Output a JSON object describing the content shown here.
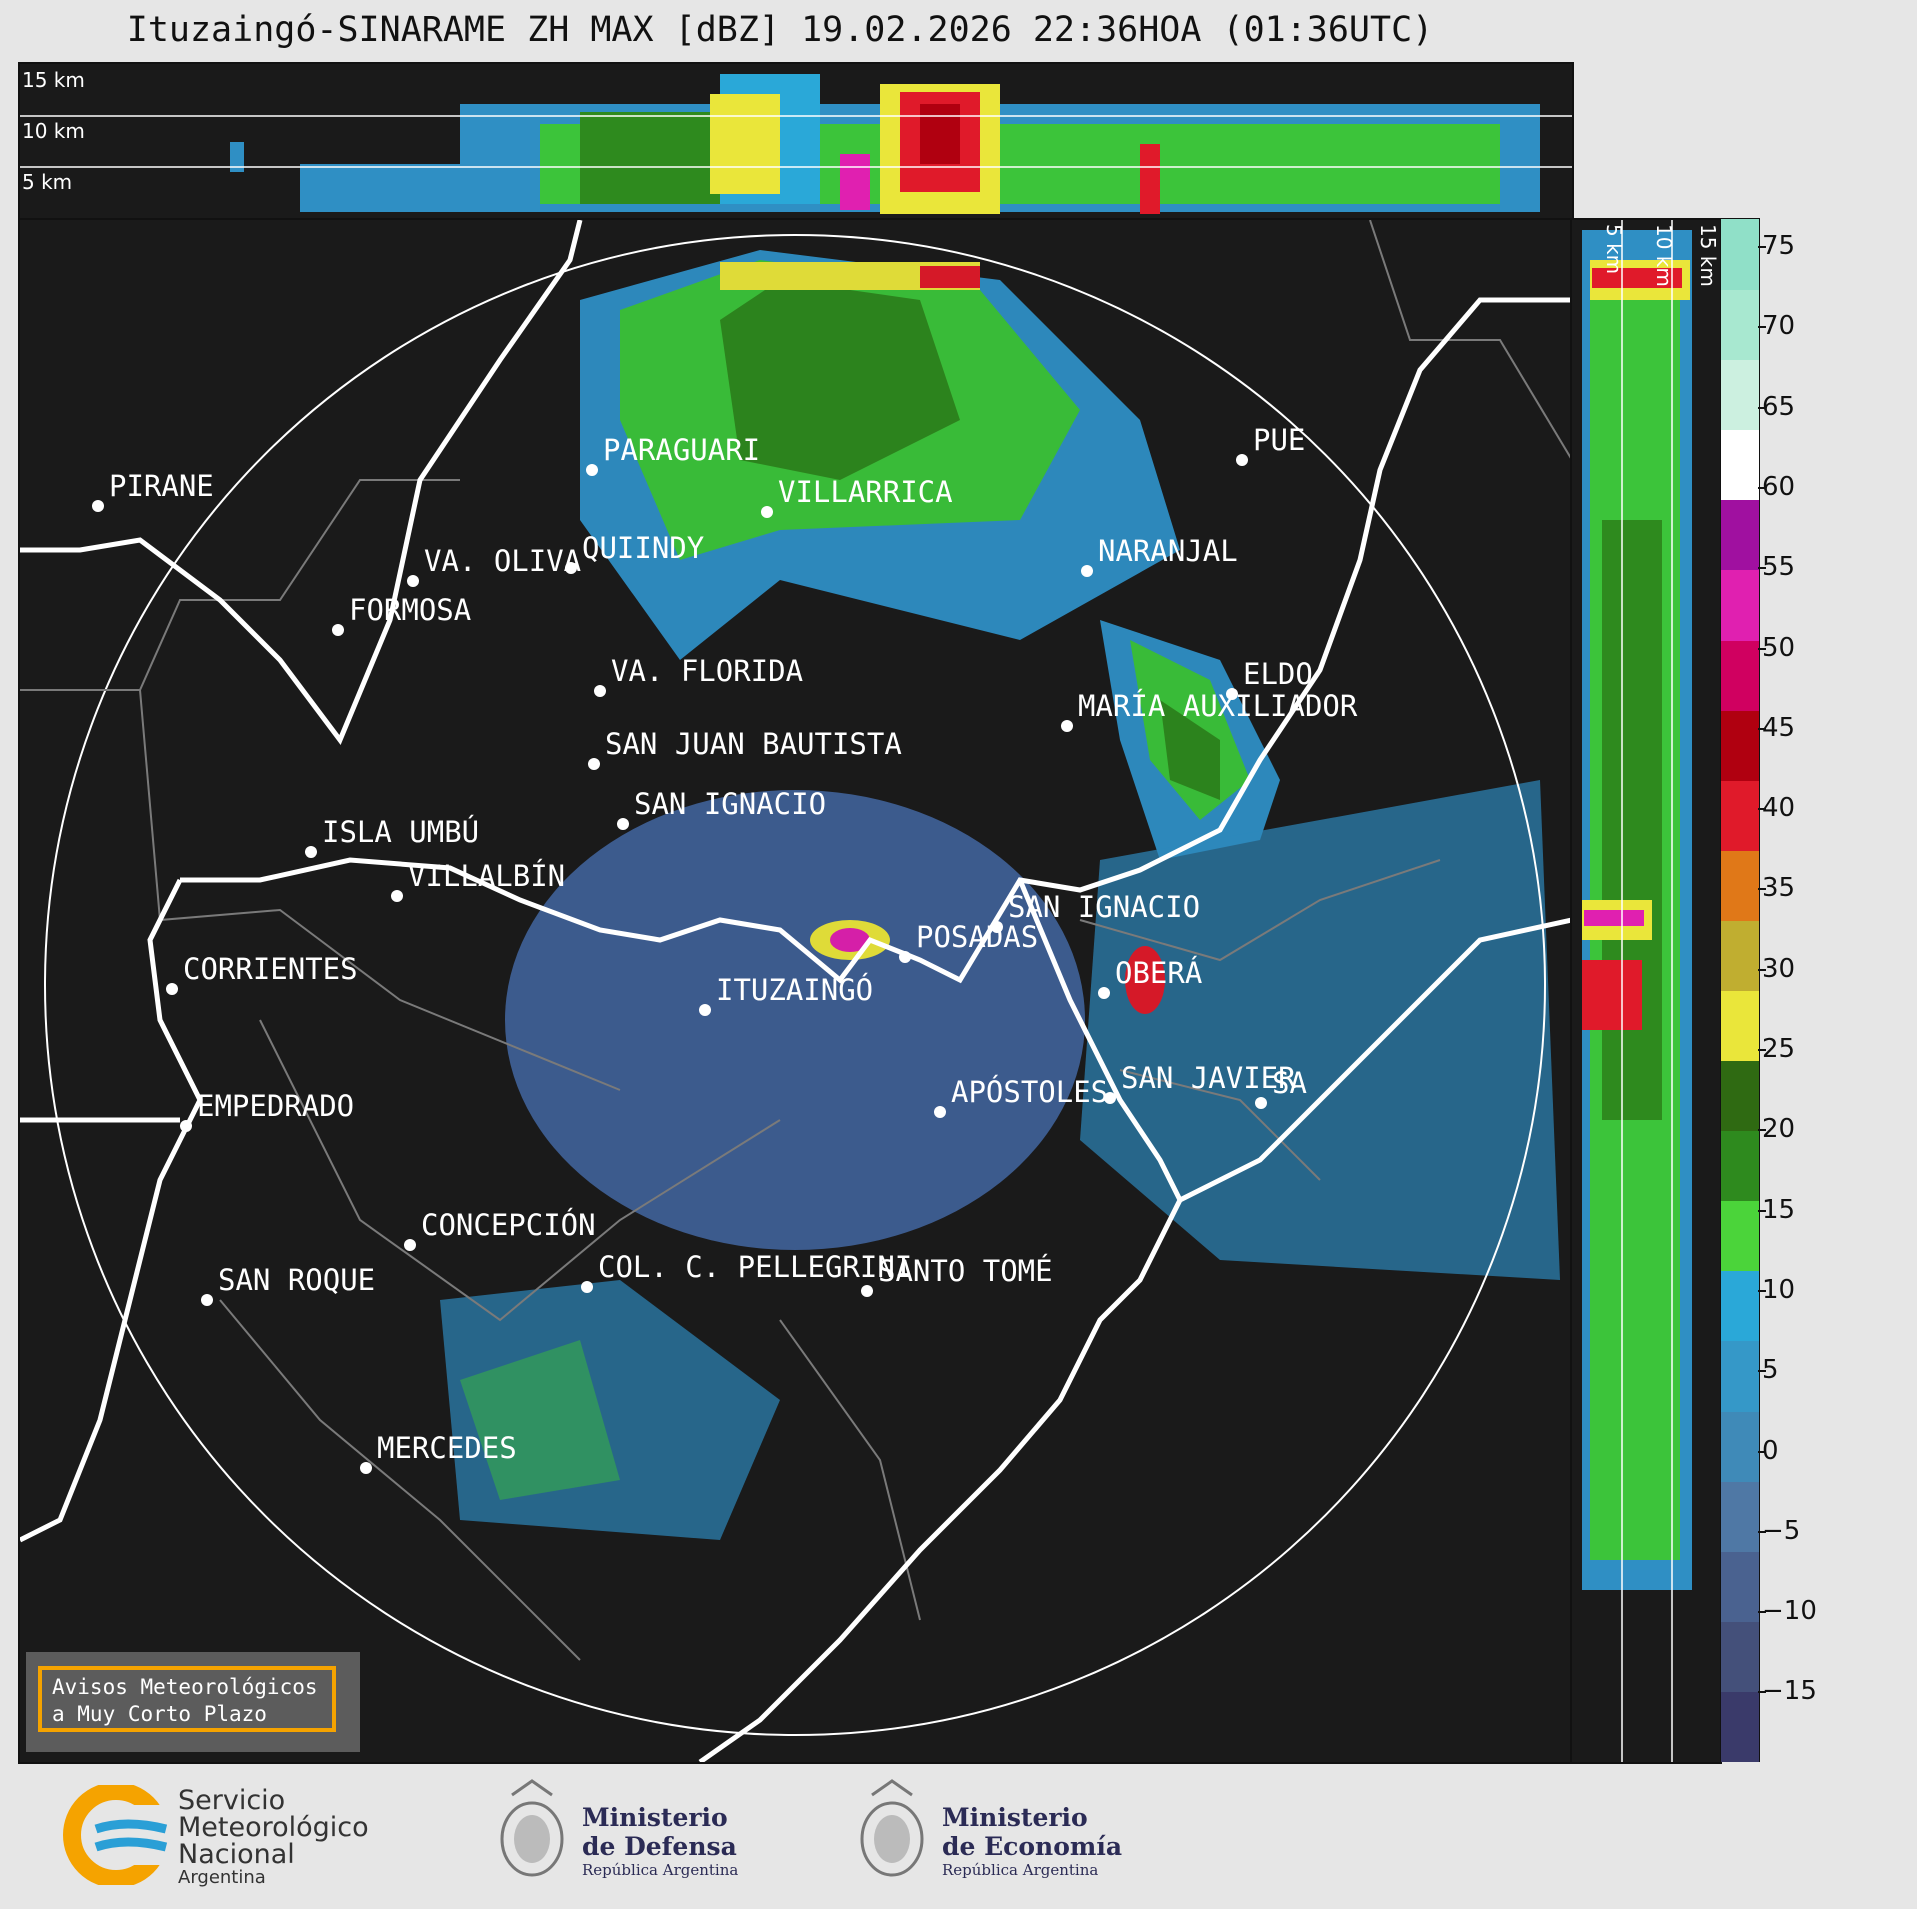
{
  "title": "Ituzaingó-SINARAME ZH MAX [dBZ] 19.02.2026 22:36HOA (01:36UTC)",
  "top_panel": {
    "labels": [
      "15 km",
      "10 km",
      "5 km"
    ]
  },
  "side_panel": {
    "labels": [
      "5 km",
      "10 km",
      "15 km"
    ]
  },
  "colorbar": {
    "ticks": [
      "75",
      "70",
      "65",
      "60",
      "55",
      "50",
      "45",
      "40",
      "35",
      "30",
      "25",
      "20",
      "15",
      "10",
      "5",
      "0",
      "−5",
      "−10",
      "−15"
    ],
    "colors": [
      "#3a3a6a",
      "#44507a",
      "#4a6290",
      "#4f78a5",
      "#3f8ab8",
      "#3598c8",
      "#2aa8d8",
      "#4bd43a",
      "#2e8a1e",
      "#2f6a12",
      "#eae63a",
      "#c0ae30",
      "#e07818",
      "#e01a2a",
      "#b00010",
      "#d00060",
      "#e020b0",
      "#a010a0",
      "#ffffff",
      "#ccf0e0",
      "#a8e8d0",
      "#90e0c8"
    ]
  },
  "cities": [
    {
      "name": "PIRANE"
    },
    {
      "name": "PARAGUARI"
    },
    {
      "name": "VILLARRICA"
    },
    {
      "name": "QUIINDY"
    },
    {
      "name": "VA. OLIVA"
    },
    {
      "name": "FORMOSA"
    },
    {
      "name": "NARANJAL"
    },
    {
      "name": "PUE"
    },
    {
      "name": "ELDO"
    },
    {
      "name": "MARÍA AUXILIADOR"
    },
    {
      "name": "VA. FLORIDA"
    },
    {
      "name": "SAN JUAN BAUTISTA"
    },
    {
      "name": "SAN IGNACIO"
    },
    {
      "name": "ISLA UMBÚ"
    },
    {
      "name": "VILLALBÍN"
    },
    {
      "name": "SAN IGNACIO"
    },
    {
      "name": "POSADAS"
    },
    {
      "name": "OBERÁ"
    },
    {
      "name": "CORRIENTES"
    },
    {
      "name": "ITUZAINGÓ"
    },
    {
      "name": "EMPEDRADO"
    },
    {
      "name": "APÓSTOLES"
    },
    {
      "name": "SAN JAVIER"
    },
    {
      "name": "SA"
    },
    {
      "name": "CONCEPCIÓN"
    },
    {
      "name": "COL. C. PELLEGRINI"
    },
    {
      "name": "SANTO TOMÉ"
    },
    {
      "name": "SAN ROQUE"
    },
    {
      "name": "MERCEDES"
    }
  ],
  "warning": {
    "line1": "Avisos Meteorológicos",
    "line2": "a Muy Corto Plazo"
  },
  "logos": {
    "smn": {
      "line1": "Servicio",
      "line2": "Meteorológico",
      "line3": "Nacional",
      "line4": "Argentina"
    },
    "defensa": {
      "line1": "Ministerio",
      "line2": "de Defensa",
      "line3": "República Argentina"
    },
    "economia": {
      "line1": "Ministerio",
      "line2": "de Economía",
      "line3": "República Argentina"
    }
  }
}
